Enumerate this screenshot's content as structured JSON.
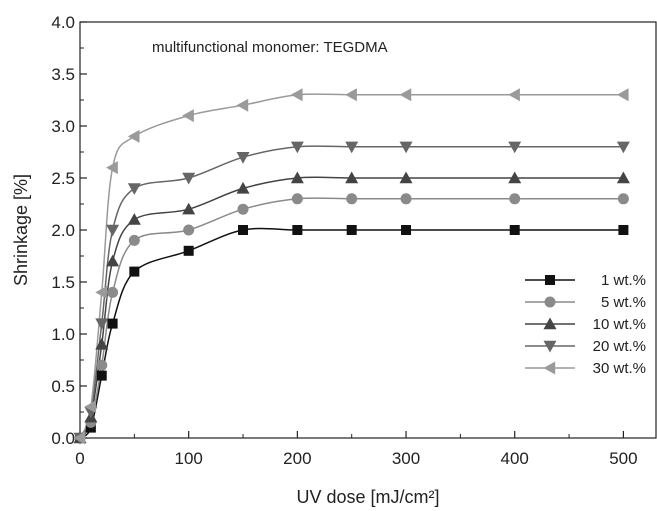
{
  "chart_data": {
    "type": "line",
    "title": "",
    "annotation": "multifunctional monomer: TEGDMA",
    "xlabel": "UV dose [mJ/cm²]",
    "ylabel": "Shrinkage [%]",
    "xlim": [
      0,
      530
    ],
    "ylim": [
      0,
      4.0
    ],
    "xticks": [
      "0",
      "100",
      "200",
      "300",
      "400",
      "500"
    ],
    "yticks": [
      "0.0",
      "0.5",
      "1.0",
      "1.5",
      "2.0",
      "2.5",
      "3.0",
      "3.5",
      "4.0"
    ],
    "grid": false,
    "legend_position": "right",
    "series": [
      {
        "name": "1 wt.%",
        "marker": "square",
        "color": "#111111",
        "x": [
          0,
          10,
          20,
          30,
          50,
          100,
          150,
          200,
          250,
          300,
          400,
          500
        ],
        "y": [
          0.0,
          0.1,
          0.6,
          1.1,
          1.6,
          1.8,
          2.0,
          2.0,
          2.0,
          2.0,
          2.0,
          2.0
        ]
      },
      {
        "name": "5 wt.%",
        "marker": "circle",
        "color": "#8a8a8a",
        "x": [
          0,
          10,
          20,
          30,
          50,
          100,
          150,
          200,
          250,
          300,
          400,
          500
        ],
        "y": [
          0.0,
          0.15,
          0.7,
          1.4,
          1.9,
          2.0,
          2.2,
          2.3,
          2.3,
          2.3,
          2.3,
          2.3
        ]
      },
      {
        "name": "10 wt.%",
        "marker": "triangle-up",
        "color": "#444444",
        "x": [
          0,
          10,
          20,
          30,
          50,
          100,
          150,
          200,
          250,
          300,
          400,
          500
        ],
        "y": [
          0.0,
          0.2,
          0.9,
          1.7,
          2.1,
          2.2,
          2.4,
          2.5,
          2.5,
          2.5,
          2.5,
          2.5
        ]
      },
      {
        "name": "20 wt.%",
        "marker": "triangle-down",
        "color": "#666666",
        "x": [
          0,
          10,
          20,
          30,
          50,
          100,
          150,
          200,
          250,
          300,
          400,
          500
        ],
        "y": [
          0.0,
          0.25,
          1.1,
          2.0,
          2.4,
          2.5,
          2.7,
          2.8,
          2.8,
          2.8,
          2.8,
          2.8
        ]
      },
      {
        "name": "30 wt.%",
        "marker": "triangle-left",
        "color": "#9a9a9a",
        "x": [
          0,
          10,
          20,
          30,
          50,
          100,
          150,
          200,
          250,
          300,
          400,
          500
        ],
        "y": [
          0.0,
          0.3,
          1.4,
          2.6,
          2.9,
          3.1,
          3.2,
          3.3,
          3.3,
          3.3,
          3.3,
          3.3
        ]
      }
    ]
  }
}
